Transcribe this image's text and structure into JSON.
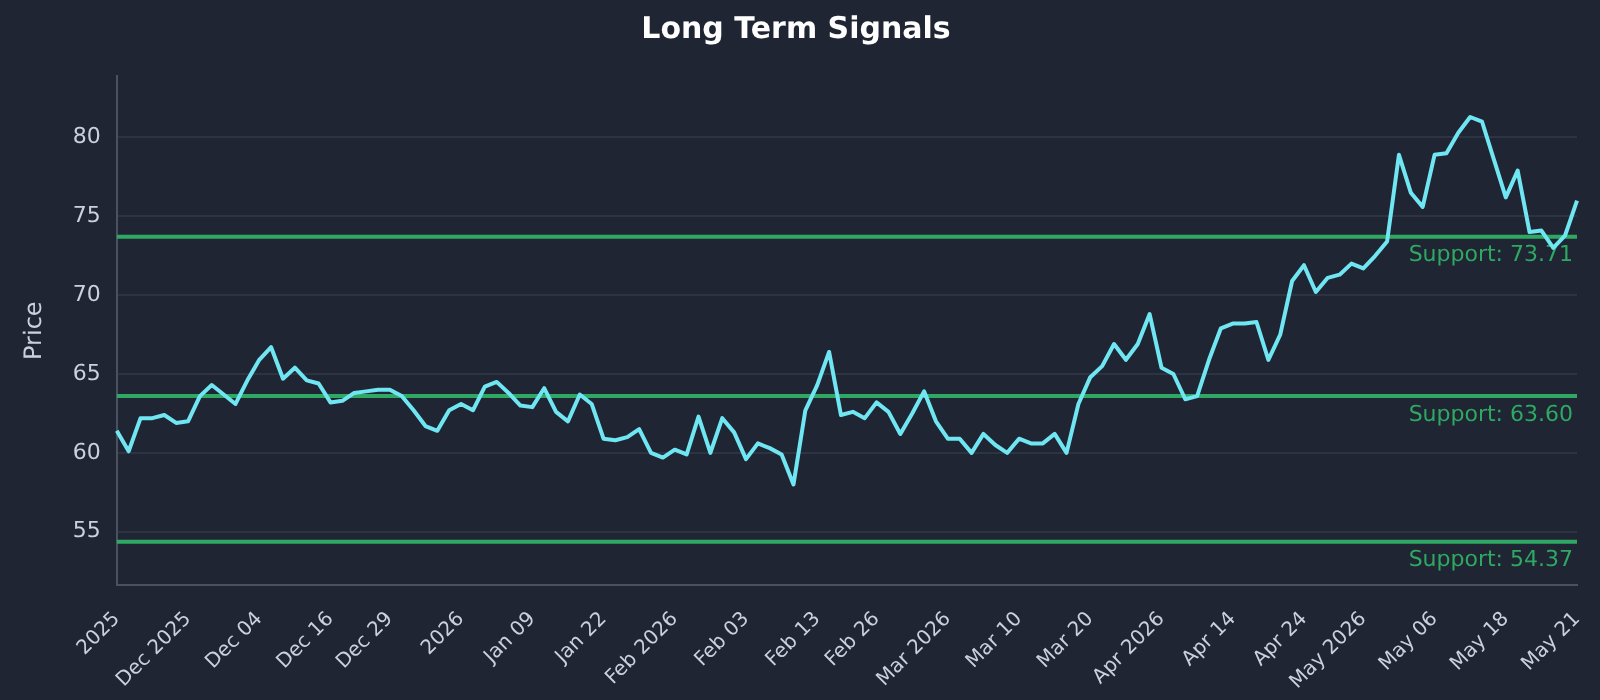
{
  "chart_data": {
    "type": "line",
    "title": "Long Term Signals",
    "ylabel": "Price",
    "categories": [
      "2025",
      null,
      null,
      null,
      null,
      null,
      "Dec 2025",
      null,
      null,
      null,
      null,
      null,
      "Dec 04",
      null,
      null,
      null,
      null,
      null,
      "Dec 16",
      null,
      null,
      null,
      null,
      "Dec 29",
      null,
      null,
      null,
      null,
      null,
      "2026",
      null,
      null,
      null,
      null,
      null,
      "Jan 09",
      null,
      null,
      null,
      null,
      null,
      "Jan 22",
      null,
      null,
      null,
      null,
      null,
      "Feb 2026",
      null,
      null,
      null,
      null,
      null,
      "Feb 03",
      null,
      null,
      null,
      null,
      null,
      "Feb 13",
      null,
      null,
      null,
      null,
      "Feb 26",
      null,
      null,
      null,
      null,
      null,
      "Mar 2026",
      null,
      null,
      null,
      null,
      null,
      "Mar 10",
      null,
      null,
      null,
      null,
      null,
      "Mar 20",
      null,
      null,
      null,
      null,
      null,
      "Apr 2026",
      null,
      null,
      null,
      null,
      null,
      "Apr 14",
      null,
      null,
      null,
      null,
      null,
      "Apr 24",
      null,
      null,
      null,
      null,
      "May 2026",
      null,
      null,
      null,
      null,
      null,
      "May 06",
      null,
      null,
      null,
      null,
      null,
      "May 18",
      null,
      null,
      null,
      null,
      null,
      "May 21"
    ],
    "series": [
      {
        "color": "#6fe6f2",
        "values": [
          61.4,
          60.1,
          62.2,
          62.2,
          62.4,
          61.9,
          62.0,
          63.6,
          64.3,
          63.7,
          63.1,
          64.6,
          65.9,
          66.7,
          64.7,
          65.4,
          64.6,
          64.4,
          63.2,
          63.3,
          63.8,
          63.9,
          64.0,
          64.0,
          63.6,
          62.7,
          61.7,
          61.4,
          62.7,
          63.1,
          62.7,
          64.2,
          64.5,
          63.8,
          63.0,
          62.9,
          64.1,
          62.6,
          62.0,
          63.7,
          63.1,
          60.9,
          60.8,
          61.0,
          61.5,
          60.0,
          59.7,
          60.2,
          59.9,
          62.3,
          60.0,
          62.2,
          61.3,
          59.6,
          60.6,
          60.3,
          59.9,
          58.0,
          62.7,
          64.3,
          66.4,
          62.4,
          62.6,
          62.2,
          63.2,
          62.6,
          61.2,
          62.5,
          63.9,
          62.0,
          60.9,
          60.9,
          60.0,
          61.2,
          60.5,
          60.0,
          60.9,
          60.6,
          60.6,
          61.2,
          60.0,
          63.1,
          64.8,
          65.5,
          66.9,
          65.9,
          66.9,
          68.8,
          65.4,
          65.0,
          63.4,
          63.6,
          65.9,
          67.9,
          68.2,
          68.2,
          68.3,
          65.9,
          67.5,
          70.9,
          71.9,
          70.2,
          71.1,
          71.3,
          72.0,
          71.7,
          72.5,
          73.4,
          78.9,
          76.5,
          75.6,
          78.9,
          79.0,
          80.3,
          81.3,
          81.0,
          78.6,
          76.2,
          77.9,
          74.0,
          74.1,
          73.0,
          73.8,
          76.0
        ]
      }
    ],
    "ylim": [
      51.6,
      83.9
    ],
    "yticks": [
      55,
      60,
      65,
      70,
      75,
      80
    ],
    "grid": "y",
    "legend": false,
    "marker": "none",
    "line_style": "solid",
    "ref_lines": [
      {
        "axis": "y",
        "value": 73.71,
        "label": "Support: 73.71",
        "color": "#2ea862"
      },
      {
        "axis": "y",
        "value": 63.6,
        "label": "Support: 63.60",
        "color": "#2ea862"
      },
      {
        "axis": "y",
        "value": 54.37,
        "label": "Support: 54.37",
        "color": "#2ea862"
      }
    ]
  }
}
